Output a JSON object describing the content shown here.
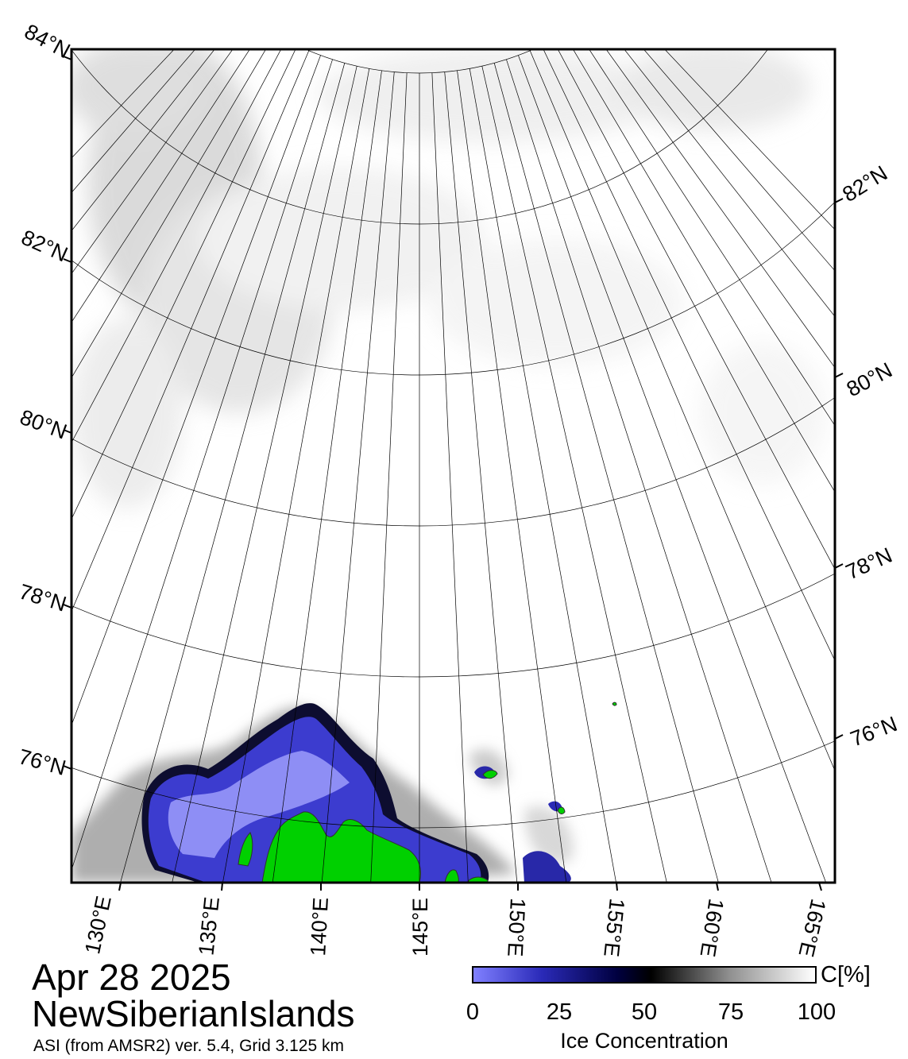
{
  "map": {
    "date": "Apr 28 2025",
    "region": "NewSiberianIslands",
    "source": "ASI (from AMSR2) ver. 5.4,  Grid 3.125 km",
    "lat_labels_left": [
      "84°N",
      "82°N",
      "80°N",
      "78°N",
      "76°N"
    ],
    "lat_labels_right": [
      "82°N",
      "80°N",
      "78°N",
      "76°N"
    ],
    "lon_labels": [
      "130°E",
      "135°E",
      "140°E",
      "145°E",
      "150°E",
      "155°E",
      "160°E",
      "165°E"
    ],
    "colors": {
      "land": "#00d000",
      "low_concentration": "#7b7bff",
      "mid_concentration": "#000033",
      "high_concentration": "#ffffff"
    }
  },
  "colorbar": {
    "unit": "C[%]",
    "ticks": [
      "0",
      "25",
      "50",
      "75",
      "100"
    ],
    "title": "Ice Concentration"
  }
}
